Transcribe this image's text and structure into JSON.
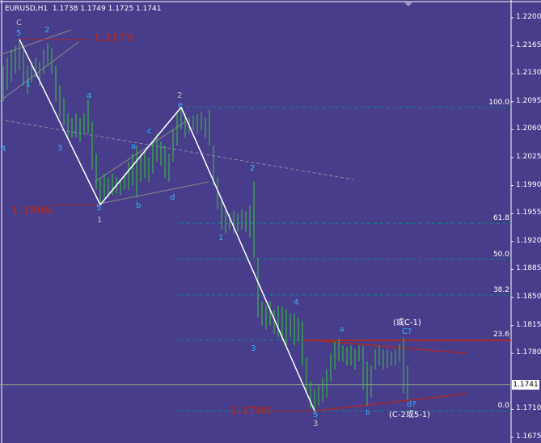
{
  "header": {
    "symbol": "EURUSD,H1",
    "open": "1.1738",
    "high": "1.1749",
    "low": "1.1725",
    "close": "1.1741"
  },
  "chart_data": {
    "type": "ohlc-bar",
    "symbol": "EURUSD",
    "timeframe": "H1",
    "ylim": [
      1.1668,
      1.2222
    ],
    "yticks": [
      "1.2200",
      "1.2165",
      "1.2130",
      "1.2095",
      "1.2060",
      "1.2025",
      "1.1990",
      "1.1955",
      "1.1920",
      "1.1885",
      "1.1850",
      "1.1815",
      "1.1780",
      "1.1710",
      "1.1675"
    ],
    "current_price": "1.1741",
    "bars_high": [
      1.214,
      1.215,
      1.216,
      1.2165,
      1.2173,
      1.216,
      1.214,
      1.2145,
      1.215,
      1.2145,
      1.216,
      1.2168,
      1.2162,
      1.214,
      1.2115,
      1.21,
      1.208,
      1.2075,
      1.208,
      1.2075,
      1.208,
      1.2098,
      1.207,
      1.203,
      1.2,
      1.2005,
      1.2,
      1.2005,
      1.2,
      1.1998,
      1.2005,
      1.202,
      1.203,
      1.204,
      1.203,
      1.2035,
      1.2025,
      1.2045,
      1.2055,
      1.2045,
      1.204,
      1.203,
      1.206,
      1.208,
      1.2088,
      1.208,
      1.2075,
      1.2078,
      1.208,
      1.2082,
      1.2075,
      1.2085,
      1.204,
      1.2,
      1.1975,
      1.196,
      1.1955,
      1.1958,
      1.1955,
      1.196,
      1.1958,
      1.1965,
      1.1995,
      1.19,
      1.1845,
      1.184,
      1.1845,
      1.1835,
      1.184,
      1.1838,
      1.1835,
      1.183,
      1.183,
      1.1825,
      1.182,
      1.1775,
      1.1745,
      1.1735,
      1.174,
      1.175,
      1.176,
      1.178,
      1.1795,
      1.1798,
      1.179,
      1.1788,
      1.179,
      1.1785,
      1.179,
      1.179,
      1.177,
      1.1765,
      1.1785,
      1.179,
      1.1785,
      1.1785,
      1.1782,
      1.1785,
      1.1792,
      1.18,
      1.1765
    ],
    "bars_low": [
      1.2095,
      1.211,
      1.212,
      1.213,
      1.2135,
      1.2115,
      1.2105,
      1.212,
      1.2125,
      1.2115,
      1.213,
      1.214,
      1.213,
      1.2095,
      1.2075,
      1.2065,
      1.205,
      1.205,
      1.205,
      1.2045,
      1.2055,
      1.2055,
      1.201,
      1.1985,
      1.1966,
      1.1975,
      1.1975,
      1.1978,
      1.198,
      1.1978,
      1.1985,
      1.1985,
      1.199,
      1.1975,
      1.1995,
      1.2,
      1.1995,
      1.2005,
      1.202,
      1.2015,
      1.2,
      1.1995,
      1.202,
      1.204,
      1.206,
      1.205,
      1.2055,
      1.206,
      1.2055,
      1.206,
      1.205,
      1.204,
      1.199,
      1.196,
      1.1935,
      1.193,
      1.1935,
      1.193,
      1.1932,
      1.1935,
      1.1932,
      1.1925,
      1.19,
      1.1825,
      1.1815,
      1.181,
      1.1815,
      1.1805,
      1.18,
      1.1795,
      1.179,
      1.18,
      1.179,
      1.1795,
      1.1765,
      1.173,
      1.1712,
      1.1708,
      1.1715,
      1.172,
      1.1725,
      1.1745,
      1.176,
      1.177,
      1.177,
      1.1765,
      1.1765,
      1.176,
      1.177,
      1.1735,
      1.1715,
      1.1725,
      1.176,
      1.1765,
      1.176,
      1.1762,
      1.1765,
      1.1765,
      1.177,
      1.173,
      1.1722
    ],
    "zigzag": [
      {
        "bar": 4,
        "price": 1.2173
      },
      {
        "bar": 24,
        "price": 1.1966
      },
      {
        "bar": 44,
        "price": 1.2088
      },
      {
        "bar": 77,
        "price": 1.1708
      }
    ],
    "price_labels": [
      "1.2173",
      "1.1966",
      "1.1708"
    ],
    "fibonacci": [
      {
        "level": "100.0",
        "price": 1.2088
      },
      {
        "level": "61.8",
        "price": 1.1943
      },
      {
        "level": "50.0",
        "price": 1.1898
      },
      {
        "level": "38.2",
        "price": 1.1853
      },
      {
        "level": "23.6",
        "price": 1.1797
      },
      {
        "level": "0.0",
        "price": 1.1708
      }
    ],
    "wave_labels": [
      "C",
      "5",
      "2",
      "1",
      "4",
      "3",
      "4",
      "a",
      "c",
      "b",
      "d",
      "5",
      "1",
      "2",
      "e",
      "2",
      "1",
      "4",
      "3",
      "a",
      "(或C-1)",
      "C?",
      "b",
      "d?",
      "(C-2或5-1)",
      "5",
      "3"
    ]
  },
  "colors": {
    "background": "#483D8B",
    "bars": "#32CD32",
    "zigzag": "#ffffff",
    "fib": "#008B8B",
    "price_line": "#A52A2A",
    "current_line": "#8FA38F"
  }
}
